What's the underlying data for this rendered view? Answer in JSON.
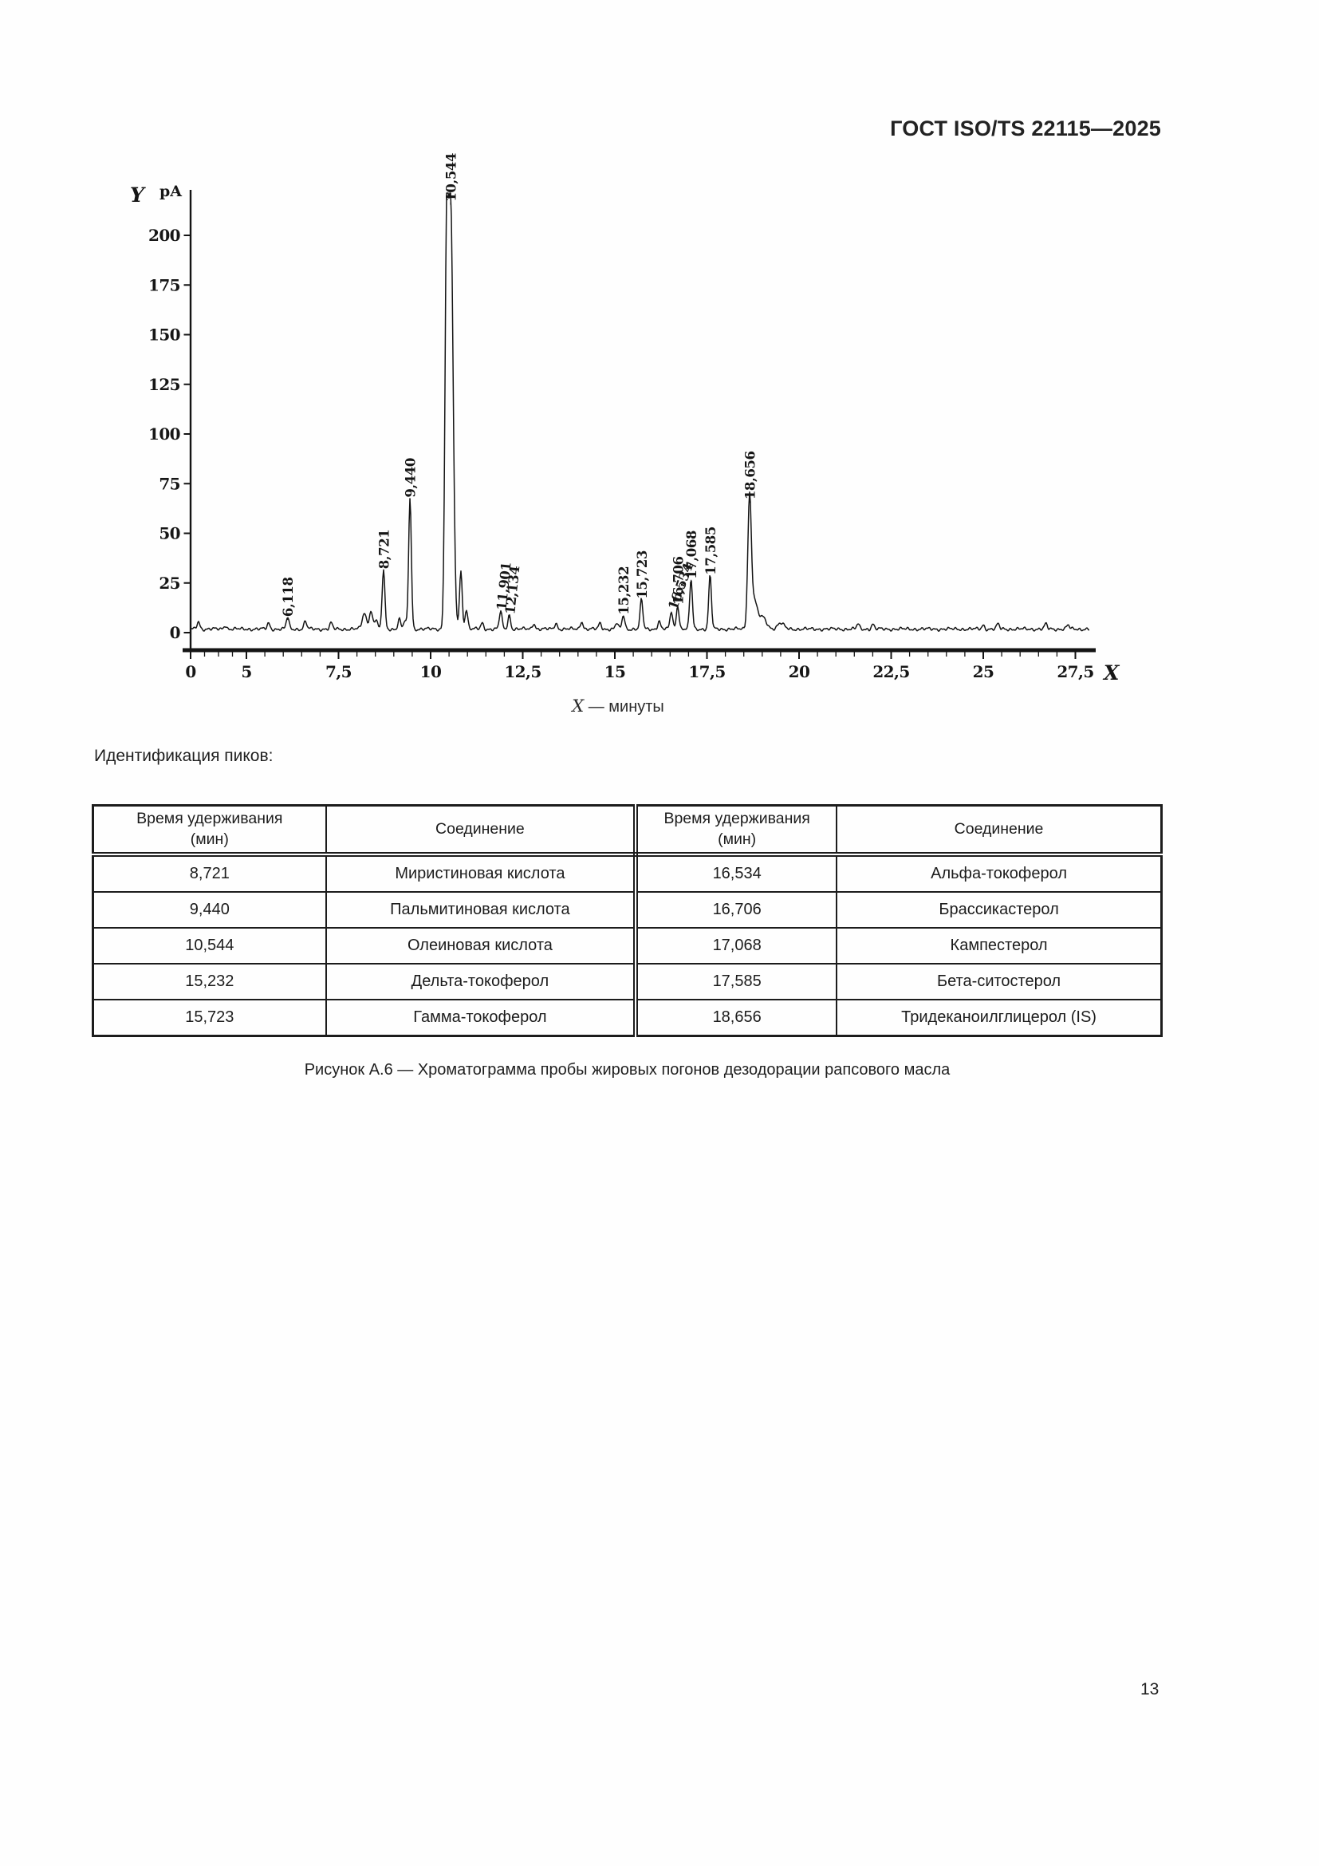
{
  "page": {
    "header": "ГОСТ ISO/TS 22115—2025",
    "peaks_intro": "Идентификация пиков:",
    "figure_caption": "Рисунок А.6 — Хроматограмма пробы жировых погонов дезодорации рапсового масла",
    "page_number": "13"
  },
  "chart_data": {
    "type": "line",
    "title": "Хроматограмма пробы жировых погонов дезодорации рапсового масла",
    "y_axis_letter": "Y",
    "y_unit": "pA",
    "x_axis_letter": "X",
    "x_caption_label": "X",
    "x_caption_rest": " — минуты",
    "y_ticks": [
      0,
      25,
      50,
      75,
      100,
      125,
      150,
      175,
      200
    ],
    "x_ticks": [
      {
        "v": 0,
        "label": "0"
      },
      {
        "v": 5,
        "label": "5"
      },
      {
        "v": 7.5,
        "label": "7,5"
      },
      {
        "v": 10,
        "label": "10"
      },
      {
        "v": 12.5,
        "label": "12,5"
      },
      {
        "v": 15,
        "label": "15"
      },
      {
        "v": 17.5,
        "label": "17,5"
      },
      {
        "v": 20,
        "label": "20"
      },
      {
        "v": 22.5,
        "label": "22,5"
      },
      {
        "v": 25,
        "label": "25"
      },
      {
        "v": 27.5,
        "label": "27,5"
      }
    ],
    "xlim": [
      0,
      28
    ],
    "ylim": [
      0,
      225
    ],
    "baseline_pA": 1.8,
    "labeled_peaks": [
      {
        "t": 6.118,
        "pA": 6,
        "label": "6,118"
      },
      {
        "t": 8.721,
        "pA": 30,
        "label": "8,721"
      },
      {
        "t": 9.44,
        "pA": 66,
        "label": "9,440"
      },
      {
        "t": 10.544,
        "pA": 215,
        "label": "10,544",
        "w": 3.0
      },
      {
        "t": 11.901,
        "pA": 9,
        "label": "11,901",
        "tilt": -84
      },
      {
        "t": 12.134,
        "pA": 7,
        "label": "12,134",
        "tilt": -84
      },
      {
        "t": 15.232,
        "pA": 7,
        "label": "15,232"
      },
      {
        "t": 15.723,
        "pA": 15,
        "label": "15,723"
      },
      {
        "t": 16.534,
        "pA": 9,
        "label": "16,534",
        "tilt": -70
      },
      {
        "t": 16.706,
        "pA": 12,
        "label": "16,706"
      },
      {
        "t": 17.068,
        "pA": 25,
        "label": "17,068"
      },
      {
        "t": 17.585,
        "pA": 27,
        "label": "17,585"
      },
      {
        "t": 18.656,
        "pA": 65,
        "label": "18,656",
        "w": 2.2
      }
    ],
    "unlabeled_peaks": [
      [
        0.7,
        4
      ],
      [
        3.1,
        2
      ],
      [
        5.6,
        3
      ],
      [
        6.6,
        4
      ],
      [
        7.3,
        3
      ],
      [
        8.2,
        8,
        2.6
      ],
      [
        8.38,
        9,
        2.2
      ],
      [
        8.52,
        5
      ],
      [
        9.15,
        5
      ],
      [
        9.3,
        4
      ],
      [
        10.43,
        170,
        2.0
      ],
      [
        10.82,
        29
      ],
      [
        10.97,
        10
      ],
      [
        11.4,
        3
      ],
      [
        12.8,
        3
      ],
      [
        13.4,
        3
      ],
      [
        14.1,
        4
      ],
      [
        14.6,
        3
      ],
      [
        15.05,
        3
      ],
      [
        16.2,
        4
      ],
      [
        18.78,
        14,
        3.5
      ],
      [
        19.0,
        6,
        5
      ],
      [
        19.5,
        3,
        4
      ],
      [
        21.6,
        2.5
      ],
      [
        22.0,
        2.5
      ],
      [
        25.0,
        2
      ],
      [
        25.4,
        2.5
      ],
      [
        26.7,
        2.5
      ],
      [
        27.3,
        2
      ]
    ]
  },
  "table": {
    "col_headers": [
      [
        "Время удерживания",
        "(мин)"
      ],
      [
        "Соединение"
      ],
      [
        "Время удерживания",
        "(мин)"
      ],
      [
        "Соединение"
      ]
    ],
    "rows": [
      [
        "8,721",
        "Миристиновая кислота",
        "16,534",
        "Альфа-токоферол"
      ],
      [
        "9,440",
        "Пальмитиновая кислота",
        "16,706",
        "Брассикастерол"
      ],
      [
        "10,544",
        "Олеиновая кислота",
        "17,068",
        "Кампестерол"
      ],
      [
        "15,232",
        "Дельта-токоферол",
        "17,585",
        "Бета-ситостерол"
      ],
      [
        "15,723",
        "Гамма-токоферол",
        "18,656",
        "Тридеканоилглицерол (IS)"
      ]
    ]
  }
}
